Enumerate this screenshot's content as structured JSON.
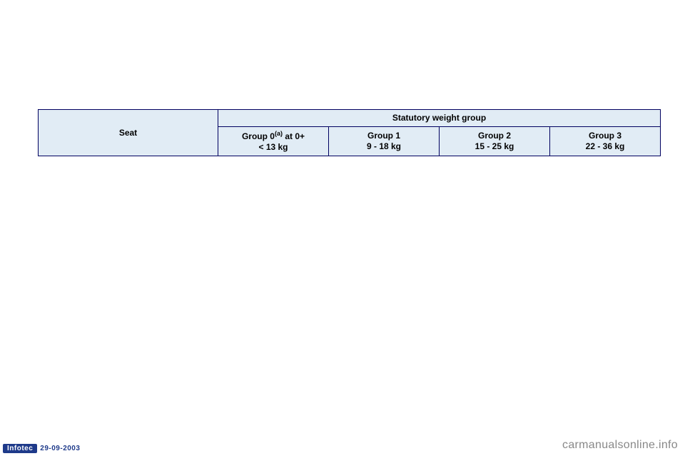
{
  "table": {
    "seat_header": "Seat",
    "weight_group_header": "Statutory weight group",
    "columns": [
      {
        "line1_pre": "Group 0",
        "sup": "(a)",
        "line1_post": " at 0+",
        "line2": "< 13 kg"
      },
      {
        "line1": "Group 1",
        "line2": "9 - 18 kg"
      },
      {
        "line1": "Group 2",
        "line2": "15 - 25 kg"
      },
      {
        "line1": "Group 3",
        "line2": "22 - 36 kg"
      }
    ]
  },
  "footer": {
    "badge": "Infotec",
    "date": "29-09-2003"
  },
  "watermark": "carmanualsonline.info",
  "colors": {
    "cell_bg": "#e1ecf5",
    "border": "#000060",
    "badge_bg": "#1e3a8a",
    "watermark": "#888888"
  }
}
